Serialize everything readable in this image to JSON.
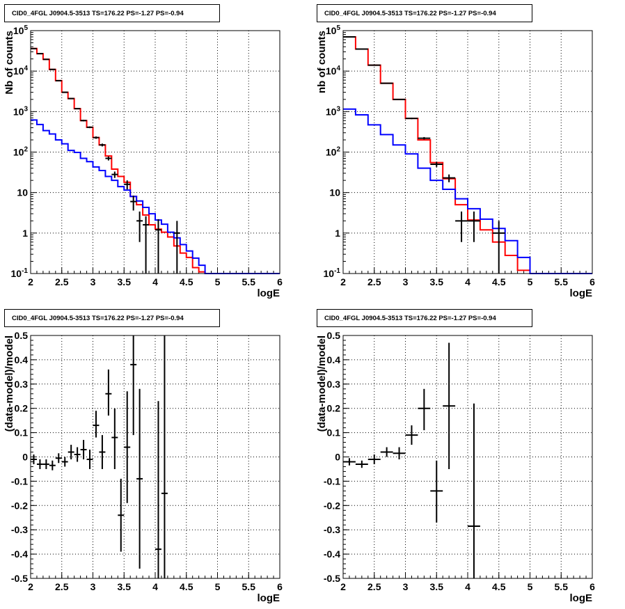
{
  "chart_data": [
    {
      "type": "line",
      "panel": "top-left",
      "title": "CID0_4FGL J0904.5-3513 TS=176.22 PS=-1.27 PS=-0.94",
      "xlabel": "logE",
      "ylabel": "Nb of counts",
      "xlim": [
        2,
        6
      ],
      "ylim": [
        0.1,
        100000
      ],
      "yscale": "log",
      "grid": true,
      "xticks": [
        "2",
        "2.5",
        "3",
        "3.5",
        "4",
        "4.5",
        "5",
        "5.5",
        "6"
      ],
      "yticks": [
        {
          "value": 0.1,
          "base": "10",
          "exp": "-1"
        },
        {
          "value": 1,
          "label": "1"
        },
        {
          "value": 10,
          "label": "10"
        },
        {
          "value": 100,
          "base": "10",
          "exp": "2"
        },
        {
          "value": 1000,
          "base": "10",
          "exp": "3"
        },
        {
          "value": 10000,
          "base": "10",
          "exp": "4"
        },
        {
          "value": 100000,
          "base": "10",
          "exp": "5"
        }
      ],
      "series": [
        {
          "kind": "step",
          "color": "#ff0000",
          "edges": [
            2.0,
            2.1,
            2.2,
            2.3,
            2.4,
            2.5,
            2.6,
            2.7,
            2.8,
            2.9,
            3.0,
            3.1,
            3.2,
            3.3,
            3.4,
            3.5,
            3.6,
            3.7,
            3.8,
            3.9,
            4.0,
            4.1,
            4.2,
            4.3,
            4.4,
            4.5,
            4.6,
            4.7,
            4.8,
            4.9,
            5.0,
            5.1,
            5.2,
            5.3,
            5.4,
            5.5,
            5.6,
            5.7,
            5.8,
            5.9,
            6.0
          ],
          "values": [
            36000,
            27000,
            19500,
            11000,
            5800,
            3000,
            2100,
            1180,
            600,
            410,
            228,
            150,
            80,
            38,
            25,
            18,
            8,
            5,
            2.8,
            1.6,
            1.25,
            1.05,
            0.8,
            0.48,
            0.32,
            0.25,
            0.14,
            0.11,
            0.1,
            0.1,
            0.1,
            0.1,
            0.1,
            0.1,
            0.1,
            0.1,
            0.1,
            0.1,
            0.1,
            0.1
          ]
        },
        {
          "kind": "step",
          "color": "#0000ff",
          "edges": [
            2.0,
            2.1,
            2.2,
            2.3,
            2.4,
            2.5,
            2.6,
            2.7,
            2.8,
            2.9,
            3.0,
            3.1,
            3.2,
            3.3,
            3.4,
            3.5,
            3.6,
            3.7,
            3.8,
            3.9,
            4.0,
            4.1,
            4.2,
            4.3,
            4.4,
            4.5,
            4.6,
            4.7,
            4.8,
            4.9,
            5.0,
            5.1,
            5.2,
            5.3,
            5.4,
            5.5,
            5.6,
            5.7,
            5.8,
            5.9,
            6.0
          ],
          "values": [
            620,
            480,
            340,
            280,
            200,
            160,
            110,
            98,
            70,
            58,
            43,
            35,
            25,
            20,
            14,
            11.5,
            8,
            6.2,
            4.3,
            3,
            2.1,
            1.65,
            1.05,
            0.76,
            0.52,
            0.36,
            0.24,
            0.16,
            0.1,
            0.1,
            0.1,
            0.1,
            0.1,
            0.1,
            0.1,
            0.1,
            0.1,
            0.1,
            0.1,
            0.1
          ]
        },
        {
          "kind": "points",
          "color": "#000000",
          "points": [
            {
              "x": 2.05,
              "y": 36000,
              "xerr": 0.05,
              "ylo": 35800,
              "yhi": 36200
            },
            {
              "x": 2.15,
              "y": 27000,
              "xerr": 0.05,
              "ylo": 26800,
              "yhi": 27200
            },
            {
              "x": 2.25,
              "y": 19500,
              "xerr": 0.05,
              "ylo": 19300,
              "yhi": 19700
            },
            {
              "x": 2.35,
              "y": 11000,
              "xerr": 0.05,
              "ylo": 10800,
              "yhi": 11200
            },
            {
              "x": 2.45,
              "y": 5800,
              "xerr": 0.05,
              "ylo": 5700,
              "yhi": 5900
            },
            {
              "x": 2.55,
              "y": 3000,
              "xerr": 0.05,
              "ylo": 2940,
              "yhi": 3060
            },
            {
              "x": 2.65,
              "y": 2100,
              "xerr": 0.05,
              "ylo": 2050,
              "yhi": 2150
            },
            {
              "x": 2.75,
              "y": 1180,
              "xerr": 0.05,
              "ylo": 1150,
              "yhi": 1210
            },
            {
              "x": 2.85,
              "y": 600,
              "xerr": 0.05,
              "ylo": 575,
              "yhi": 625
            },
            {
              "x": 2.95,
              "y": 410,
              "xerr": 0.05,
              "ylo": 390,
              "yhi": 430
            },
            {
              "x": 3.05,
              "y": 228,
              "xerr": 0.05,
              "ylo": 213,
              "yhi": 243
            },
            {
              "x": 3.15,
              "y": 150,
              "xerr": 0.05,
              "ylo": 138,
              "yhi": 162
            },
            {
              "x": 3.25,
              "y": 70,
              "xerr": 0.05,
              "ylo": 62,
              "yhi": 78
            },
            {
              "x": 3.35,
              "y": 28,
              "xerr": 0.05,
              "ylo": 23,
              "yhi": 33
            },
            {
              "x": 3.55,
              "y": 16,
              "xerr": 0.05,
              "ylo": 12,
              "yhi": 20
            },
            {
              "x": 3.65,
              "y": 6,
              "xerr": 0.05,
              "ylo": 3.6,
              "yhi": 8.4
            },
            {
              "x": 3.75,
              "y": 2,
              "xerr": 0.05,
              "ylo": 0.6,
              "yhi": 3.4
            },
            {
              "x": 3.85,
              "y": 1.6,
              "xerr": 0.05,
              "ylo": 0.1,
              "yhi": 2.6
            },
            {
              "x": 4.05,
              "y": 1.2,
              "xerr": 0.05,
              "ylo": 0.1,
              "yhi": 2.2
            },
            {
              "x": 4.35,
              "y": 1,
              "xerr": 0.05,
              "ylo": 0.1,
              "yhi": 2
            }
          ]
        }
      ]
    },
    {
      "type": "line",
      "panel": "top-right",
      "title": "CID0_4FGL J0904.5-3513 TS=176.22 PS=-1.27 PS=-0.94",
      "xlabel": "logE",
      "ylabel": "nb of counts",
      "xlim": [
        2,
        6
      ],
      "ylim": [
        0.1,
        100000
      ],
      "yscale": "log",
      "grid": true,
      "xticks": [
        "2",
        "2.5",
        "3",
        "3.5",
        "4",
        "4.5",
        "5",
        "5.5",
        "6"
      ],
      "yticks": [
        {
          "value": 0.1,
          "base": "10",
          "exp": "-1"
        },
        {
          "value": 1,
          "label": "1"
        },
        {
          "value": 10,
          "label": "10"
        },
        {
          "value": 100,
          "base": "10",
          "exp": "2"
        },
        {
          "value": 1000,
          "base": "10",
          "exp": "3"
        },
        {
          "value": 10000,
          "base": "10",
          "exp": "4"
        },
        {
          "value": 100000,
          "base": "10",
          "exp": "5"
        }
      ],
      "series": [
        {
          "kind": "step",
          "color": "#ff0000",
          "edges": [
            2.0,
            2.2,
            2.4,
            2.6,
            2.8,
            3.0,
            3.2,
            3.4,
            3.6,
            3.8,
            4.0,
            4.2,
            4.4,
            4.6,
            4.8,
            5.0,
            5.2,
            5.4,
            5.6,
            5.8,
            6.0
          ],
          "values": [
            70000,
            35000,
            14000,
            5000,
            2000,
            680,
            200,
            55,
            22,
            5,
            2.1,
            1.2,
            0.6,
            0.28,
            0.12,
            0.1,
            0.1,
            0.1,
            0.1,
            0.1
          ]
        },
        {
          "kind": "step",
          "color": "#0000ff",
          "edges": [
            2.0,
            2.2,
            2.4,
            2.6,
            2.8,
            3.0,
            3.2,
            3.4,
            3.6,
            3.8,
            4.0,
            4.2,
            4.4,
            4.6,
            4.8,
            5.0,
            5.2,
            5.4,
            5.6,
            5.8,
            6.0
          ],
          "values": [
            1150,
            830,
            470,
            270,
            150,
            90,
            40,
            20,
            12,
            7,
            4,
            2.2,
            1.3,
            0.65,
            0.25,
            0.1,
            0.1,
            0.1,
            0.1,
            0.1
          ]
        },
        {
          "kind": "points",
          "color": "#000000",
          "points": [
            {
              "x": 2.1,
              "y": 70000,
              "xerr": 0.1,
              "ylo": 69700,
              "yhi": 70300
            },
            {
              "x": 2.3,
              "y": 35000,
              "xerr": 0.1,
              "ylo": 34800,
              "yhi": 35200
            },
            {
              "x": 2.5,
              "y": 14000,
              "xerr": 0.1,
              "ylo": 13850,
              "yhi": 14150
            },
            {
              "x": 2.7,
              "y": 5000,
              "xerr": 0.1,
              "ylo": 4920,
              "yhi": 5080
            },
            {
              "x": 2.9,
              "y": 2000,
              "xerr": 0.1,
              "ylo": 1950,
              "yhi": 2050
            },
            {
              "x": 3.1,
              "y": 680,
              "xerr": 0.1,
              "ylo": 650,
              "yhi": 710
            },
            {
              "x": 3.3,
              "y": 220,
              "xerr": 0.1,
              "ylo": 205,
              "yhi": 235
            },
            {
              "x": 3.5,
              "y": 50,
              "xerr": 0.1,
              "ylo": 43,
              "yhi": 57
            },
            {
              "x": 3.7,
              "y": 23,
              "xerr": 0.1,
              "ylo": 18,
              "yhi": 28
            },
            {
              "x": 3.9,
              "y": 2,
              "xerr": 0.1,
              "ylo": 0.6,
              "yhi": 3.4
            },
            {
              "x": 4.1,
              "y": 2,
              "xerr": 0.1,
              "ylo": 0.6,
              "yhi": 3.4
            },
            {
              "x": 4.5,
              "y": 1,
              "xerr": 0.1,
              "ylo": 0.1,
              "yhi": 2
            }
          ]
        }
      ]
    },
    {
      "type": "scatter",
      "panel": "bottom-left",
      "title": "CID0_4FGL J0904.5-3513 TS=176.22 PS=-1.27 PS=-0.94",
      "xlabel": "logE",
      "ylabel": "(data-model)/model",
      "xlim": [
        2,
        6
      ],
      "ylim": [
        -0.5,
        0.5
      ],
      "grid": true,
      "xticks": [
        "2",
        "2.5",
        "3",
        "3.5",
        "4",
        "4.5",
        "5",
        "5.5",
        "6"
      ],
      "yticks": [
        {
          "value": -0.5,
          "label": "-0.5"
        },
        {
          "value": -0.4,
          "label": "-0.4"
        },
        {
          "value": -0.3,
          "label": "-0.3"
        },
        {
          "value": -0.2,
          "label": "-0.2"
        },
        {
          "value": -0.1,
          "label": "-0.1"
        },
        {
          "value": 0,
          "label": "0"
        },
        {
          "value": 0.1,
          "label": "0.1"
        },
        {
          "value": 0.2,
          "label": "0.2"
        },
        {
          "value": 0.3,
          "label": "0.3"
        },
        {
          "value": 0.4,
          "label": "0.4"
        },
        {
          "value": 0.5,
          "label": "0.5"
        }
      ],
      "series": [
        {
          "kind": "points",
          "color": "#000000",
          "points": [
            {
              "x": 2.05,
              "y": -0.01,
              "xerr": 0.05,
              "ylo": -0.03,
              "yhi": 0.01
            },
            {
              "x": 2.15,
              "y": -0.03,
              "xerr": 0.05,
              "ylo": -0.05,
              "yhi": -0.01
            },
            {
              "x": 2.25,
              "y": -0.03,
              "xerr": 0.05,
              "ylo": -0.05,
              "yhi": -0.01
            },
            {
              "x": 2.35,
              "y": -0.035,
              "xerr": 0.05,
              "ylo": -0.055,
              "yhi": -0.015
            },
            {
              "x": 2.45,
              "y": -0.005,
              "xerr": 0.05,
              "ylo": -0.025,
              "yhi": 0.015
            },
            {
              "x": 2.55,
              "y": -0.02,
              "xerr": 0.05,
              "ylo": -0.04,
              "yhi": 0.0
            },
            {
              "x": 2.65,
              "y": 0.02,
              "xerr": 0.05,
              "ylo": -0.01,
              "yhi": 0.05
            },
            {
              "x": 2.75,
              "y": 0.01,
              "xerr": 0.05,
              "ylo": -0.02,
              "yhi": 0.04
            },
            {
              "x": 2.85,
              "y": 0.03,
              "xerr": 0.05,
              "ylo": -0.01,
              "yhi": 0.07
            },
            {
              "x": 2.95,
              "y": -0.01,
              "xerr": 0.05,
              "ylo": -0.05,
              "yhi": 0.03
            },
            {
              "x": 3.05,
              "y": 0.13,
              "xerr": 0.05,
              "ylo": 0.08,
              "yhi": 0.19
            },
            {
              "x": 3.15,
              "y": 0.02,
              "xerr": 0.05,
              "ylo": -0.05,
              "yhi": 0.09
            },
            {
              "x": 3.25,
              "y": 0.26,
              "xerr": 0.05,
              "ylo": 0.17,
              "yhi": 0.36
            },
            {
              "x": 3.35,
              "y": 0.08,
              "xerr": 0.05,
              "ylo": -0.05,
              "yhi": 0.2
            },
            {
              "x": 3.45,
              "y": -0.24,
              "xerr": 0.05,
              "ylo": -0.39,
              "yhi": -0.09
            },
            {
              "x": 3.55,
              "y": 0.04,
              "xerr": 0.05,
              "ylo": -0.19,
              "yhi": 0.27
            },
            {
              "x": 3.65,
              "y": 0.38,
              "xerr": 0.05,
              "ylo": 0.09,
              "yhi": 0.52
            },
            {
              "x": 3.75,
              "y": -0.09,
              "xerr": 0.05,
              "ylo": -0.46,
              "yhi": 0.28
            },
            {
              "x": 4.05,
              "y": -0.38,
              "xerr": 0.05,
              "ylo": -0.52,
              "yhi": 0.23
            },
            {
              "x": 4.15,
              "y": -0.15,
              "xerr": 0.05,
              "ylo": -0.52,
              "yhi": 0.52
            }
          ]
        }
      ]
    },
    {
      "type": "scatter",
      "panel": "bottom-right",
      "title": "CID0_4FGL J0904.5-3513 TS=176.22 PS=-1.27 PS=-0.94",
      "xlabel": "logE",
      "ylabel": "(data-model)/model",
      "xlim": [
        2,
        6
      ],
      "ylim": [
        -0.5,
        0.5
      ],
      "grid": true,
      "xticks": [
        "2",
        "2.5",
        "3",
        "3.5",
        "4",
        "4.5",
        "5",
        "5.5",
        "6"
      ],
      "yticks": [
        {
          "value": -0.5,
          "label": "-0.5"
        },
        {
          "value": -0.4,
          "label": "-0.4"
        },
        {
          "value": -0.3,
          "label": "-0.3"
        },
        {
          "value": -0.2,
          "label": "-0.2"
        },
        {
          "value": -0.1,
          "label": "-0.1"
        },
        {
          "value": 0,
          "label": "0"
        },
        {
          "value": 0.1,
          "label": "0.1"
        },
        {
          "value": 0.2,
          "label": "0.2"
        },
        {
          "value": 0.3,
          "label": "0.3"
        },
        {
          "value": 0.4,
          "label": "0.4"
        },
        {
          "value": 0.5,
          "label": "0.5"
        }
      ],
      "series": [
        {
          "kind": "points",
          "color": "#000000",
          "points": [
            {
              "x": 2.1,
              "y": -0.02,
              "xerr": 0.1,
              "ylo": -0.035,
              "yhi": -0.005
            },
            {
              "x": 2.3,
              "y": -0.03,
              "xerr": 0.1,
              "ylo": -0.045,
              "yhi": -0.015
            },
            {
              "x": 2.5,
              "y": -0.01,
              "xerr": 0.1,
              "ylo": -0.03,
              "yhi": 0.01
            },
            {
              "x": 2.7,
              "y": 0.02,
              "xerr": 0.1,
              "ylo": 0.0,
              "yhi": 0.04
            },
            {
              "x": 2.9,
              "y": 0.015,
              "xerr": 0.1,
              "ylo": -0.01,
              "yhi": 0.04
            },
            {
              "x": 3.1,
              "y": 0.09,
              "xerr": 0.1,
              "ylo": 0.05,
              "yhi": 0.13
            },
            {
              "x": 3.3,
              "y": 0.2,
              "xerr": 0.1,
              "ylo": 0.11,
              "yhi": 0.28
            },
            {
              "x": 3.5,
              "y": -0.14,
              "xerr": 0.1,
              "ylo": -0.27,
              "yhi": -0.015
            },
            {
              "x": 3.7,
              "y": 0.21,
              "xerr": 0.1,
              "ylo": -0.05,
              "yhi": 0.47
            },
            {
              "x": 4.1,
              "y": -0.285,
              "xerr": 0.1,
              "ylo": -0.52,
              "yhi": 0.22
            }
          ]
        }
      ]
    }
  ]
}
